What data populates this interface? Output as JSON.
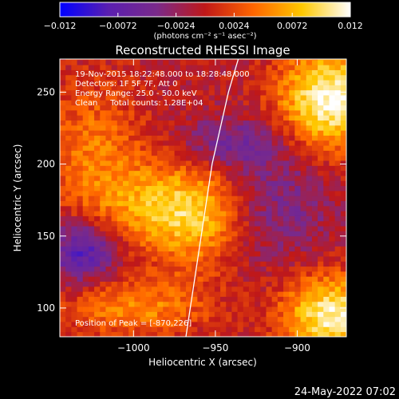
{
  "chart_data": {
    "type": "heatmap",
    "title": "Reconstructed RHESSI Image",
    "xlabel": "Heliocentric X (arcsec)",
    "ylabel": "Heliocentric Y (arcsec)",
    "xlim": [
      -1045,
      -870
    ],
    "ylim": [
      80,
      273
    ],
    "x_ticks": [
      {
        "value": -1000,
        "label": "−1000"
      },
      {
        "value": -950,
        "label": "−950"
      },
      {
        "value": -900,
        "label": "−900"
      }
    ],
    "y_ticks": [
      {
        "value": 100,
        "label": "100"
      },
      {
        "value": 150,
        "label": "150"
      },
      {
        "value": 200,
        "label": "200"
      },
      {
        "value": 250,
        "label": "250"
      }
    ],
    "colorbar": {
      "range": [
        -0.012,
        0.012
      ],
      "unit_label": "(photons cm⁻² s⁻¹ asec⁻²)",
      "ticks": [
        {
          "value": -0.012,
          "label": "−0.012"
        },
        {
          "value": -0.0072,
          "label": "−0.0072"
        },
        {
          "value": -0.0024,
          "label": "−0.0024"
        },
        {
          "value": 0.0024,
          "label": "0.0024"
        },
        {
          "value": 0.0072,
          "label": "0.0072"
        },
        {
          "value": 0.012,
          "label": "0.012"
        }
      ],
      "colors": [
        "#0000ff",
        "#5a1fb0",
        "#7a2a8a",
        "#c01818",
        "#ff6600",
        "#ffc800",
        "#ffffff"
      ]
    },
    "annotations": [
      "19-Nov-2015 18:22:48.000 to 18:28:48.000",
      "Detectors: 1F 5F 7F, Att 0",
      "Energy Range: 25.0 - 50.0 keV",
      "Clean     Total counts: 1.28E+04"
    ],
    "peak_label": "Position of Peak = [-870,226]",
    "limb_curve": [
      [
        -968,
        80
      ],
      [
        -960,
        140
      ],
      [
        -952,
        200
      ],
      [
        -942,
        250
      ],
      [
        -936,
        273
      ]
    ],
    "sources": [
      {
        "x": -975,
        "y": 170,
        "sx": 30,
        "sy": 22,
        "amp": 0.0085
      },
      {
        "x": -960,
        "y": 150,
        "sx": 18,
        "sy": 28,
        "amp": 0.003
      },
      {
        "x": -880,
        "y": 245,
        "sx": 22,
        "sy": 25,
        "amp": 0.0125
      },
      {
        "x": -878,
        "y": 95,
        "sx": 22,
        "sy": 20,
        "amp": 0.0115
      },
      {
        "x": -1025,
        "y": 210,
        "sx": 22,
        "sy": 35,
        "amp": 0.005
      },
      {
        "x": -1000,
        "y": 100,
        "sx": 30,
        "sy": 14,
        "amp": 0.006
      },
      {
        "x": -1030,
        "y": 140,
        "sx": 15,
        "sy": 15,
        "amp": -0.008
      },
      {
        "x": -915,
        "y": 175,
        "sx": 25,
        "sy": 30,
        "amp": -0.004
      },
      {
        "x": -940,
        "y": 215,
        "sx": 22,
        "sy": 12,
        "amp": -0.004
      }
    ]
  },
  "footer": {
    "date": "24-May-2022 07:02"
  }
}
